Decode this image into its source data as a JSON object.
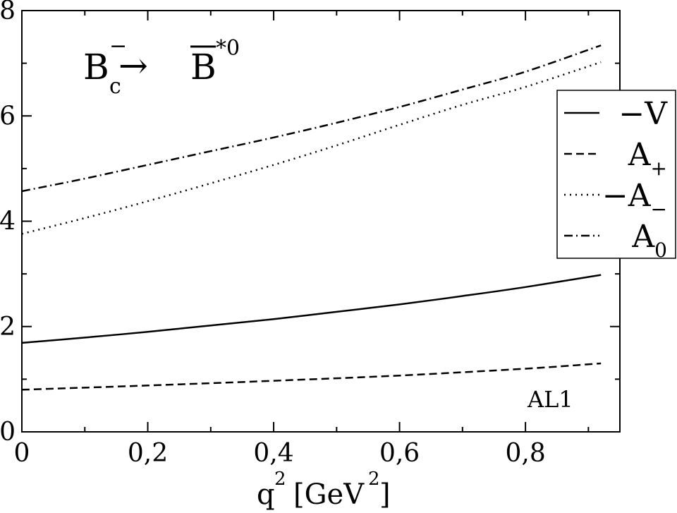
{
  "chart_data": {
    "type": "line",
    "annotation": {
      "B": "B",
      "c": "c",
      "minus": "−",
      "arrow": "→",
      "Bbar": "B",
      "star0": "*0"
    },
    "model_label": "AL1",
    "xlabel": {
      "q": "q",
      "sup1": "2",
      "unit": "[GeV",
      "sup2": "2",
      "close": "]"
    },
    "xlim": [
      0,
      0.95
    ],
    "ylim": [
      0,
      8
    ],
    "x_ticks": [
      0,
      0.2,
      0.4,
      0.6,
      0.8
    ],
    "x_tick_labels": [
      "0",
      "0,2",
      "0,4",
      "0,6",
      "0,8"
    ],
    "y_ticks": [
      0,
      2,
      4,
      6,
      8
    ],
    "y_tick_labels": [
      "0",
      "2",
      "4",
      "6",
      "8"
    ],
    "legend_position": "right",
    "series": [
      {
        "name": "−V",
        "main": "−V",
        "sub": "",
        "style": "solid",
        "x": [
          0,
          0.1,
          0.2,
          0.3,
          0.4,
          0.5,
          0.6,
          0.7,
          0.8,
          0.92
        ],
        "y": [
          1.69,
          1.79,
          1.9,
          2.02,
          2.14,
          2.28,
          2.42,
          2.58,
          2.75,
          2.98
        ]
      },
      {
        "name": "A+",
        "main": "A",
        "sub": "+",
        "style": "dashed",
        "x": [
          0,
          0.2,
          0.4,
          0.6,
          0.8,
          0.92
        ],
        "y": [
          0.8,
          0.88,
          0.97,
          1.07,
          1.2,
          1.3
        ]
      },
      {
        "name": "−A−",
        "main": "−A",
        "sub": "−",
        "style": "dotted",
        "x": [
          0,
          0.1,
          0.2,
          0.3,
          0.4,
          0.5,
          0.6,
          0.7,
          0.8,
          0.92
        ],
        "y": [
          3.76,
          4.06,
          4.38,
          4.72,
          5.07,
          5.44,
          5.83,
          6.21,
          6.55,
          7.02
        ]
      },
      {
        "name": "A0",
        "main": "A",
        "sub": "0",
        "style": "dashdot",
        "x": [
          0,
          0.1,
          0.2,
          0.3,
          0.4,
          0.5,
          0.6,
          0.7,
          0.8,
          0.92
        ],
        "y": [
          4.57,
          4.81,
          5.07,
          5.33,
          5.59,
          5.87,
          6.17,
          6.5,
          6.84,
          7.34
        ]
      }
    ]
  }
}
